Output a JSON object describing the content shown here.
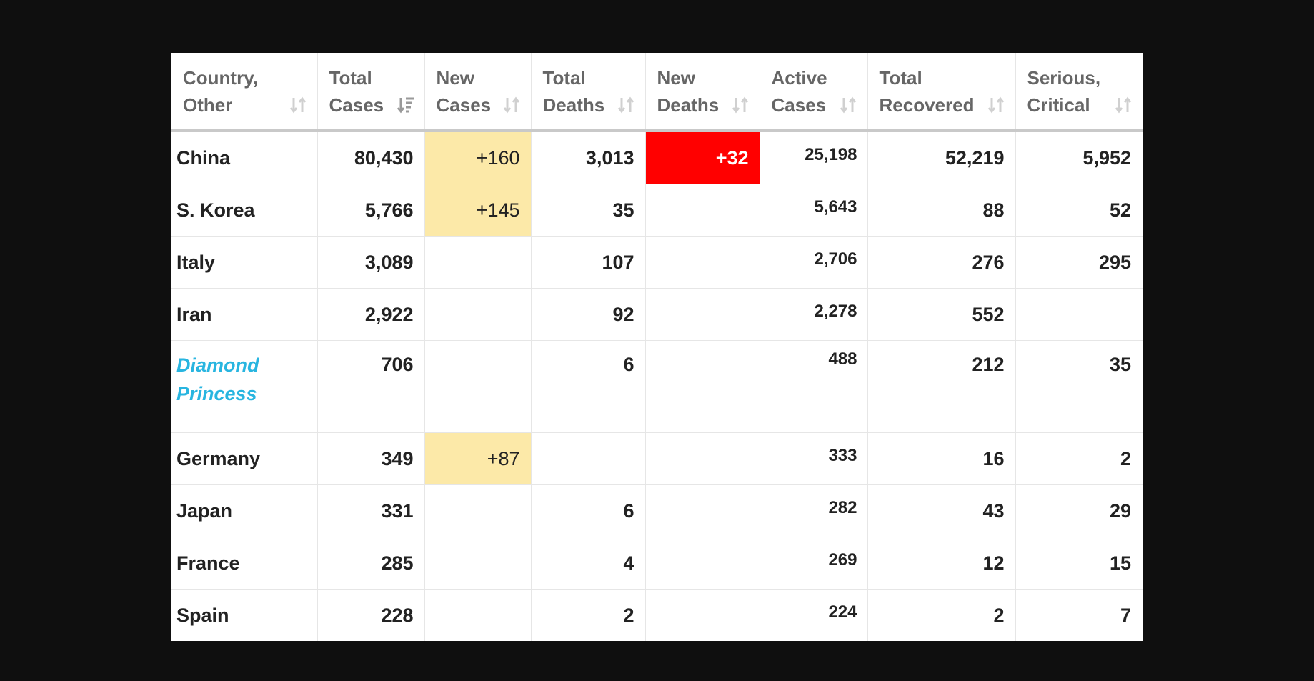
{
  "colors": {
    "page_background": "#0f0f0f",
    "new_cases_highlight": "#fce9a8",
    "new_deaths_highlight": "#ff0000",
    "ship_link": "#28b5e0",
    "header_text": "#666666"
  },
  "table": {
    "headers": [
      {
        "label": "Country,\nOther",
        "sort_icon": "sort-arrows-icon"
      },
      {
        "label": "Total\nCases",
        "sort_icon": "sort-descending-icon"
      },
      {
        "label": "New\nCases",
        "sort_icon": "sort-arrows-icon"
      },
      {
        "label": "Total\nDeaths",
        "sort_icon": "sort-arrows-icon"
      },
      {
        "label": "New\nDeaths",
        "sort_icon": "sort-arrows-icon"
      },
      {
        "label": "Active\nCases",
        "sort_icon": "sort-arrows-icon"
      },
      {
        "label": "Total\nRecovered",
        "sort_icon": "sort-arrows-icon"
      },
      {
        "label": "Serious,\nCritical",
        "sort_icon": "sort-arrows-icon"
      }
    ],
    "rows": [
      {
        "country": "China",
        "total_cases": "80,430",
        "new_cases": "+160",
        "total_deaths": "3,013",
        "new_deaths": "+32",
        "active_cases": "25,198",
        "total_recovered": "52,219",
        "serious_critical": "5,952"
      },
      {
        "country": "S. Korea",
        "total_cases": "5,766",
        "new_cases": "+145",
        "total_deaths": "35",
        "new_deaths": "",
        "active_cases": "5,643",
        "total_recovered": "88",
        "serious_critical": "52"
      },
      {
        "country": "Italy",
        "total_cases": "3,089",
        "new_cases": "",
        "total_deaths": "107",
        "new_deaths": "",
        "active_cases": "2,706",
        "total_recovered": "276",
        "serious_critical": "295"
      },
      {
        "country": "Iran",
        "total_cases": "2,922",
        "new_cases": "",
        "total_deaths": "92",
        "new_deaths": "",
        "active_cases": "2,278",
        "total_recovered": "552",
        "serious_critical": ""
      },
      {
        "country": "Diamond\nPrincess",
        "total_cases": "706",
        "new_cases": "",
        "total_deaths": "6",
        "new_deaths": "",
        "active_cases": "488",
        "total_recovered": "212",
        "serious_critical": "35"
      },
      {
        "country": "Germany",
        "total_cases": "349",
        "new_cases": "+87",
        "total_deaths": "",
        "new_deaths": "",
        "active_cases": "333",
        "total_recovered": "16",
        "serious_critical": "2"
      },
      {
        "country": "Japan",
        "total_cases": "331",
        "new_cases": "",
        "total_deaths": "6",
        "new_deaths": "",
        "active_cases": "282",
        "total_recovered": "43",
        "serious_critical": "29"
      },
      {
        "country": "France",
        "total_cases": "285",
        "new_cases": "",
        "total_deaths": "4",
        "new_deaths": "",
        "active_cases": "269",
        "total_recovered": "12",
        "serious_critical": "15"
      },
      {
        "country": "Spain",
        "total_cases": "228",
        "new_cases": "",
        "total_deaths": "2",
        "new_deaths": "",
        "active_cases": "224",
        "total_recovered": "2",
        "serious_critical": "7"
      }
    ]
  }
}
